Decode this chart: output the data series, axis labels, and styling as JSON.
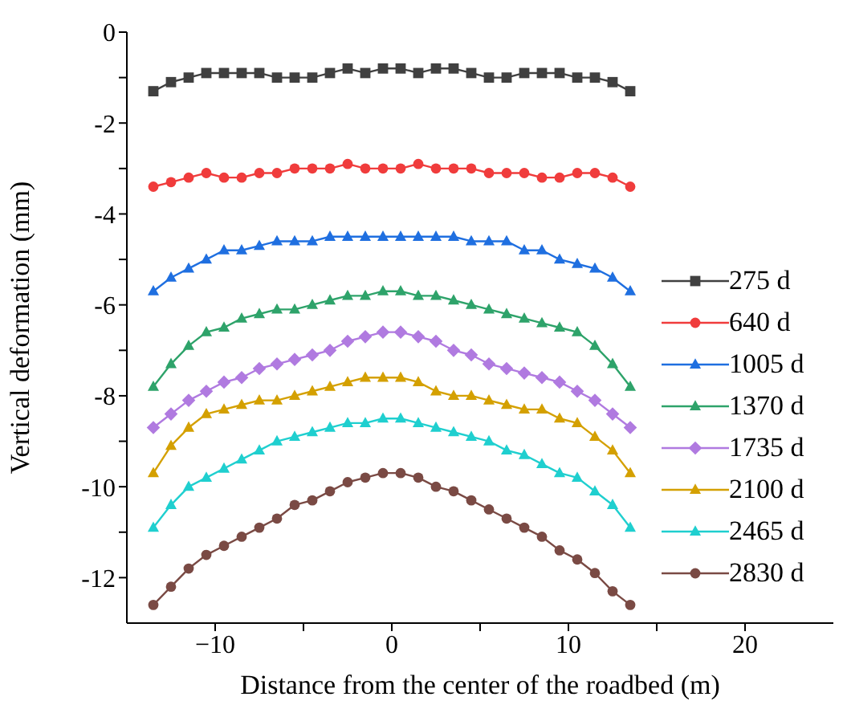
{
  "chart_data": {
    "type": "line",
    "xlabel": "Distance from the center of the roadbed (m)",
    "ylabel": "Vertical deformation (mm)",
    "x": [
      -13.5,
      -12.5,
      -11.5,
      -10.5,
      -9.5,
      -8.5,
      -7.5,
      -6.5,
      -5.5,
      -4.5,
      -3.5,
      -2.5,
      -1.5,
      -0.5,
      0.5,
      1.5,
      2.5,
      3.5,
      4.5,
      5.5,
      6.5,
      7.5,
      8.5,
      9.5,
      10.5,
      11.5,
      12.5,
      13.5
    ],
    "xlim": [
      -15,
      25
    ],
    "xticks": [
      {
        "value": -10,
        "label": "−10"
      },
      {
        "value": -5,
        "label": null
      },
      0,
      {
        "value": 5,
        "label": null
      },
      10,
      {
        "value": 15,
        "label": null
      },
      20
    ],
    "ylim": [
      -13,
      0
    ],
    "yticks": [
      -12,
      {
        "value": -11,
        "label": null
      },
      -10,
      {
        "value": -9,
        "label": null
      },
      -8,
      {
        "value": -7,
        "label": null
      },
      -6,
      {
        "value": -5,
        "label": null
      },
      -4,
      {
        "value": -3,
        "label": null
      },
      -2,
      {
        "value": -1,
        "label": null
      },
      0
    ],
    "grid": false,
    "legend": "right",
    "line_style": "solid",
    "series": [
      {
        "name": "275 d",
        "color": "#404040",
        "marker": "square",
        "values": [
          -1.3,
          -1.1,
          -1.0,
          -0.9,
          -0.9,
          -0.9,
          -0.9,
          -1.0,
          -1.0,
          -1.0,
          -0.9,
          -0.8,
          -0.9,
          -0.8,
          -0.8,
          -0.9,
          -0.8,
          -0.8,
          -0.9,
          -1.0,
          -1.0,
          -0.9,
          -0.9,
          -0.9,
          -1.0,
          -1.0,
          -1.1,
          -1.3
        ]
      },
      {
        "name": "640 d",
        "color": "#f03c3c",
        "marker": "circle",
        "values": [
          -3.4,
          -3.3,
          -3.2,
          -3.1,
          -3.2,
          -3.2,
          -3.1,
          -3.1,
          -3.0,
          -3.0,
          -3.0,
          -2.9,
          -3.0,
          -3.0,
          -3.0,
          -2.9,
          -3.0,
          -3.0,
          -3.0,
          -3.1,
          -3.1,
          -3.1,
          -3.2,
          -3.2,
          -3.1,
          -3.1,
          -3.2,
          -3.4
        ]
      },
      {
        "name": "1005 d",
        "color": "#1f6fe0",
        "marker": "triangle",
        "values": [
          -5.7,
          -5.4,
          -5.2,
          -5.0,
          -4.8,
          -4.8,
          -4.7,
          -4.6,
          -4.6,
          -4.6,
          -4.5,
          -4.5,
          -4.5,
          -4.5,
          -4.5,
          -4.5,
          -4.5,
          -4.5,
          -4.6,
          -4.6,
          -4.6,
          -4.8,
          -4.8,
          -5.0,
          -5.1,
          -5.2,
          -5.4,
          -5.7
        ]
      },
      {
        "name": "1370 d",
        "color": "#2ea36a",
        "marker": "triangle",
        "values": [
          -7.8,
          -7.3,
          -6.9,
          -6.6,
          -6.5,
          -6.3,
          -6.2,
          -6.1,
          -6.1,
          -6.0,
          -5.9,
          -5.8,
          -5.8,
          -5.7,
          -5.7,
          -5.8,
          -5.8,
          -5.9,
          -6.0,
          -6.1,
          -6.2,
          -6.3,
          -6.4,
          -6.5,
          -6.6,
          -6.9,
          -7.3,
          -7.8
        ]
      },
      {
        "name": "1735 d",
        "color": "#b07ae0",
        "marker": "diamond",
        "values": [
          -8.7,
          -8.4,
          -8.1,
          -7.9,
          -7.7,
          -7.6,
          -7.4,
          -7.3,
          -7.2,
          -7.1,
          -7.0,
          -6.8,
          -6.7,
          -6.6,
          -6.6,
          -6.7,
          -6.8,
          -7.0,
          -7.1,
          -7.3,
          -7.4,
          -7.5,
          -7.6,
          -7.7,
          -7.9,
          -8.1,
          -8.4,
          -8.7
        ]
      },
      {
        "name": "2100 d",
        "color": "#d4a000",
        "marker": "triangle",
        "values": [
          -9.7,
          -9.1,
          -8.7,
          -8.4,
          -8.3,
          -8.2,
          -8.1,
          -8.1,
          -8.0,
          -7.9,
          -7.8,
          -7.7,
          -7.6,
          -7.6,
          -7.6,
          -7.7,
          -7.9,
          -8.0,
          -8.0,
          -8.1,
          -8.2,
          -8.3,
          -8.3,
          -8.5,
          -8.6,
          -8.9,
          -9.2,
          -9.7
        ]
      },
      {
        "name": "2465 d",
        "color": "#1fcfcf",
        "marker": "triangle",
        "values": [
          -10.9,
          -10.4,
          -10.0,
          -9.8,
          -9.6,
          -9.4,
          -9.2,
          -9.0,
          -8.9,
          -8.8,
          -8.7,
          -8.6,
          -8.6,
          -8.5,
          -8.5,
          -8.6,
          -8.7,
          -8.8,
          -8.9,
          -9.0,
          -9.2,
          -9.3,
          -9.5,
          -9.7,
          -9.8,
          -10.1,
          -10.4,
          -10.9
        ]
      },
      {
        "name": "2830 d",
        "color": "#7a4a44",
        "marker": "circle",
        "values": [
          -12.6,
          -12.2,
          -11.8,
          -11.5,
          -11.3,
          -11.1,
          -10.9,
          -10.7,
          -10.4,
          -10.3,
          -10.1,
          -9.9,
          -9.8,
          -9.7,
          -9.7,
          -9.8,
          -10.0,
          -10.1,
          -10.3,
          -10.5,
          -10.7,
          -10.9,
          -11.1,
          -11.4,
          -11.6,
          -11.9,
          -12.3,
          -12.6
        ]
      }
    ]
  }
}
